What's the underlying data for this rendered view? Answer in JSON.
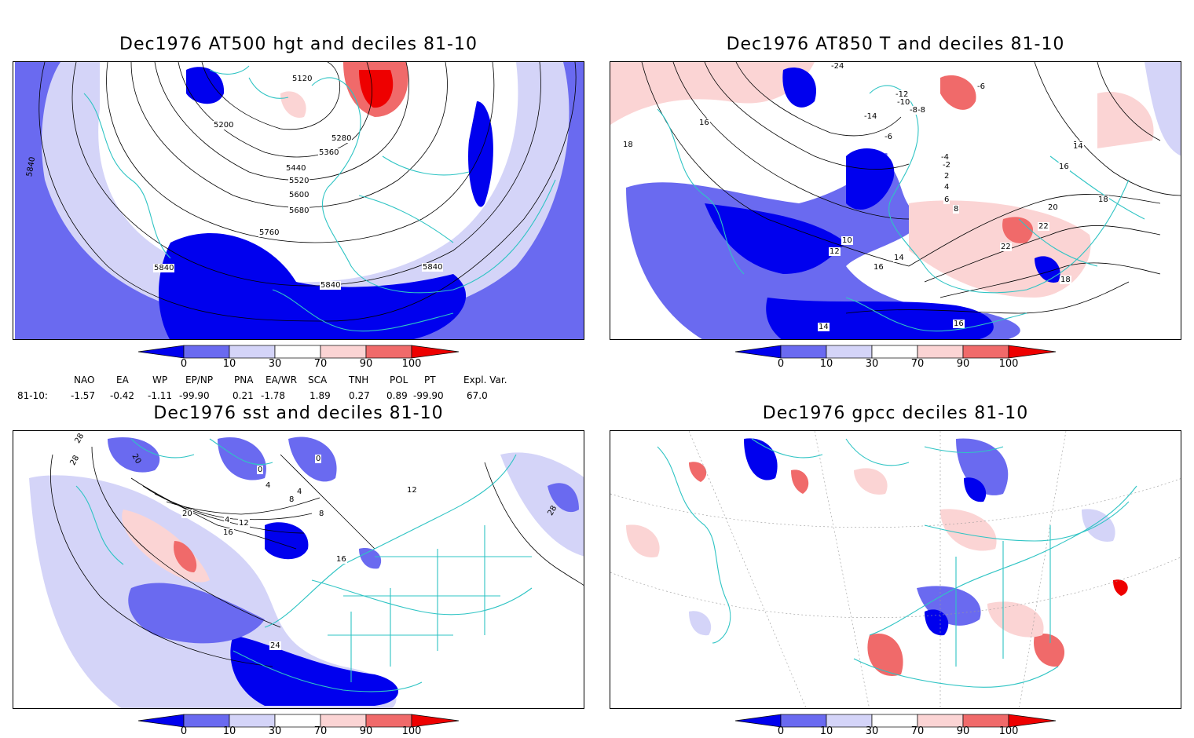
{
  "panels": [
    {
      "id": "p1",
      "title": "Dec1976 AT500 hgt and deciles 81-10",
      "contour_labels": [
        "5120",
        "5200",
        "5280",
        "5360",
        "5440",
        "5520",
        "5600",
        "5680",
        "5760",
        "5840",
        "5840",
        "5840",
        "5840"
      ]
    },
    {
      "id": "p2",
      "title": "Dec1976 AT850 T and deciles 81-10",
      "contour_labels": [
        "-24",
        "-12",
        "-10",
        "-8",
        "-6",
        "-14",
        "-6",
        "-8",
        "-4",
        "-2",
        "2",
        "4",
        "6",
        "8",
        "10",
        "12",
        "14",
        "16",
        "16",
        "18",
        "16",
        "18",
        "20",
        "22",
        "22",
        "16",
        "18",
        "14",
        "16",
        "14"
      ]
    },
    {
      "id": "p3",
      "title": "Dec1976 sst and deciles 81-10",
      "contour_labels": [
        "28",
        "28",
        "20",
        "0",
        "0",
        "4",
        "8",
        "4",
        "20",
        "4",
        "12",
        "16",
        "16",
        "24",
        "28",
        "8",
        "12"
      ]
    },
    {
      "id": "p4",
      "title": "Dec1976 gpcc deciles 81-10",
      "contour_labels": []
    }
  ],
  "colorbar": {
    "ticks": [
      "0",
      "10",
      "30",
      "70",
      "90",
      "100"
    ],
    "colors": [
      "#0000ee",
      "#6a6af0",
      "#d4d4f8",
      "#ffffff",
      "#fbd4d4",
      "#f06a6a",
      "#ee0000"
    ]
  },
  "indices": {
    "headers": [
      "NAO",
      "EA",
      "WP",
      "EP/NP",
      "PNA",
      "EA/WR",
      "SCA",
      "TNH",
      "POL",
      "PT",
      "Expl. Var."
    ],
    "row_label": "81-10:",
    "values": [
      "-1.57",
      "-0.42",
      "-1.11",
      "-99.90",
      "0.21",
      "-1.78",
      "1.89",
      "0.27",
      "0.89",
      "-99.90",
      "67.0"
    ]
  },
  "map_colors": {
    "coast": "#2fc4c4",
    "grid": "#999999"
  }
}
